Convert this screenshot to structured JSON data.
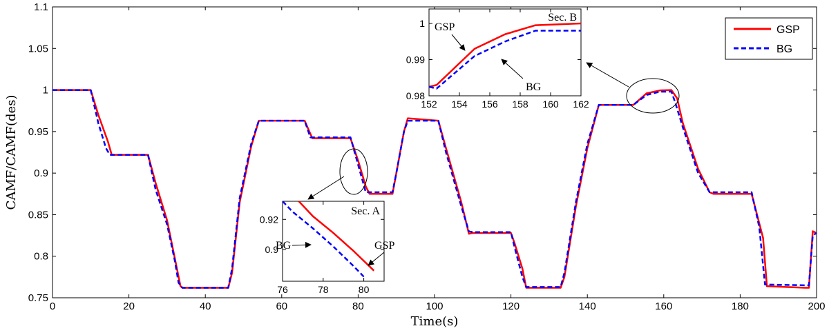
{
  "chart_data": {
    "type": "line",
    "xlabel": "Time(s)",
    "ylabel": "CAMF/CAMF(des)",
    "xlim": [
      0,
      200
    ],
    "ylim": [
      0.75,
      1.1
    ],
    "x_ticks": [
      "0",
      "20",
      "40",
      "60",
      "80",
      "100",
      "120",
      "140",
      "160",
      "180",
      "200"
    ],
    "y_ticks": [
      "0.75",
      "0.8",
      "0.85",
      "0.9",
      "0.95",
      "1",
      "1.05",
      "1.1"
    ],
    "grid": false,
    "legend_position": "top-right",
    "colors": {
      "GSP": "#ff0000",
      "BG": "#0000ff"
    },
    "series": [
      {
        "name": "GSP",
        "x": [
          0,
          10,
          12,
          14.5,
          15.5,
          25,
          27,
          30,
          32,
          33.5,
          34,
          46,
          47,
          49,
          52,
          54,
          60,
          66,
          68,
          78,
          80,
          82,
          83,
          89,
          90,
          92,
          93,
          101,
          103,
          107,
          109,
          110,
          120,
          121,
          123,
          124,
          133,
          134,
          137,
          140,
          143,
          152,
          155.5,
          159,
          162,
          163.5,
          165,
          169,
          172,
          173,
          183,
          186,
          187,
          197,
          198,
          199,
          200
        ],
        "y": [
          1.0,
          1.0,
          0.97,
          0.938,
          0.922,
          0.922,
          0.888,
          0.843,
          0.798,
          0.764,
          0.762,
          0.762,
          0.78,
          0.865,
          0.932,
          0.963,
          0.963,
          0.963,
          0.942,
          0.942,
          0.915,
          0.884,
          0.875,
          0.875,
          0.9,
          0.95,
          0.966,
          0.963,
          0.93,
          0.865,
          0.827,
          0.828,
          0.828,
          0.815,
          0.785,
          0.762,
          0.762,
          0.775,
          0.86,
          0.93,
          0.982,
          0.982,
          0.996,
          0.9995,
          1.0,
          0.99,
          0.96,
          0.905,
          0.877,
          0.875,
          0.875,
          0.822,
          0.764,
          0.762,
          0.762,
          0.83,
          0.828
        ]
      },
      {
        "name": "BG",
        "x": [
          0,
          10,
          12,
          14,
          15,
          25,
          27,
          30,
          32,
          33,
          34,
          46,
          47,
          49,
          52,
          54,
          60,
          66,
          67.5,
          78,
          80,
          82,
          89,
          90,
          92,
          93,
          101,
          103,
          107,
          109,
          110,
          120,
          121,
          123,
          124,
          133,
          134,
          137,
          140,
          143,
          152,
          155.5,
          159,
          162,
          163,
          165,
          169,
          172,
          173,
          183,
          185,
          186.5,
          197,
          198,
          199,
          200
        ],
        "y": [
          1.0,
          1.0,
          0.96,
          0.93,
          0.922,
          0.922,
          0.88,
          0.838,
          0.795,
          0.768,
          0.762,
          0.762,
          0.785,
          0.87,
          0.935,
          0.963,
          0.963,
          0.963,
          0.943,
          0.943,
          0.91,
          0.877,
          0.877,
          0.9,
          0.95,
          0.963,
          0.963,
          0.925,
          0.86,
          0.83,
          0.829,
          0.829,
          0.81,
          0.775,
          0.763,
          0.763,
          0.78,
          0.865,
          0.935,
          0.982,
          0.982,
          0.994,
          0.998,
          0.998,
          0.985,
          0.955,
          0.9,
          0.877,
          0.877,
          0.877,
          0.835,
          0.766,
          0.765,
          0.765,
          0.825,
          0.828
        ]
      }
    ],
    "annotations": [
      "Sec. A",
      "Sec. B"
    ],
    "insets": [
      {
        "name": "Sec. A",
        "xlim": [
          76,
          81
        ],
        "ylim": [
          0.879,
          0.932
        ],
        "x_ticks": [
          "76",
          "78",
          "80"
        ],
        "y_ticks": [
          "0.9",
          "0.92"
        ],
        "labels": [
          "BG",
          "GSP"
        ],
        "series": [
          {
            "name": "GSP",
            "x": [
              76.8,
              77.5,
              78.5,
              79.5,
              80.5
            ],
            "y": [
              0.932,
              0.922,
              0.911,
              0.899,
              0.886
            ]
          },
          {
            "name": "BG",
            "x": [
              76,
              76.5,
              77.5,
              78.5,
              79.5,
              80.0
            ],
            "y": [
              0.932,
              0.925,
              0.914,
              0.902,
              0.889,
              0.882
            ]
          }
        ]
      },
      {
        "name": "Sec. B",
        "xlim": [
          152,
          162
        ],
        "ylim": [
          0.98,
          1.004
        ],
        "x_ticks": [
          "152",
          "154",
          "156",
          "158",
          "160",
          "162"
        ],
        "y_ticks": [
          "0.98",
          "0.99",
          "1"
        ],
        "labels": [
          "GSP",
          "BG"
        ],
        "series": [
          {
            "name": "GSP",
            "x": [
              152,
              152.5,
              155,
              157,
              159,
              162
            ],
            "y": [
              0.9825,
              0.983,
              0.993,
              0.997,
              0.9995,
              1.0
            ]
          },
          {
            "name": "BG",
            "x": [
              152,
              152.5,
              155,
              157,
              159,
              162
            ],
            "y": [
              0.9825,
              0.982,
              0.991,
              0.995,
              0.998,
              0.998
            ]
          }
        ]
      }
    ]
  }
}
